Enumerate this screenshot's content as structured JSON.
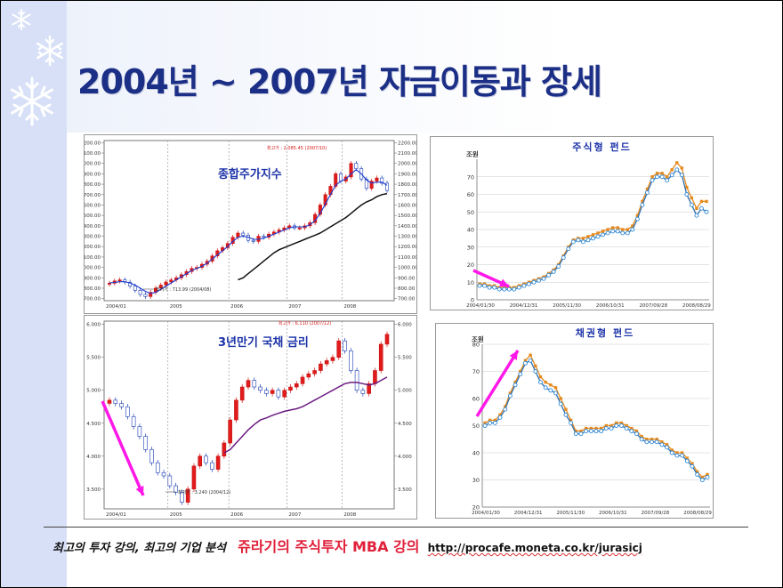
{
  "slide": {
    "title": "2004년 ~ 2007년 자금이동과 장세",
    "footer": {
      "tagline": "최고의 투자 강의, 최고의 기업 분석",
      "course": "쥬라기의 주식투자 MBA 강의",
      "url": "http://procafe.moneta.co.kr/jurasicj"
    }
  },
  "chart_data": [
    {
      "type": "candlestick",
      "title": "종합주가지수",
      "x_ticks": [
        "2004/01",
        "2005",
        "2006",
        "2007",
        "2008"
      ],
      "y_ticks": [
        "2200.00",
        "2100.00",
        "2000.00",
        "1900.00",
        "1800.00",
        "1700.00",
        "1600.00",
        "1500.00",
        "1400.00",
        "1300.00",
        "1200.00",
        "1100.00",
        "1000.00",
        "900.00",
        "800.00",
        "700.00"
      ],
      "ylim": [
        680,
        2220
      ],
      "annotations": {
        "high": "최고가 : 2,085.45 (2007/10)",
        "low": "최저가 : 713.99 (2004/08)"
      },
      "close": [
        848,
        870,
        880,
        858,
        820,
        780,
        740,
        720,
        760,
        800,
        830,
        860,
        880,
        900,
        930,
        960,
        990,
        1000,
        1030,
        1060,
        1110,
        1160,
        1190,
        1230,
        1290,
        1330,
        1310,
        1260,
        1250,
        1300,
        1290,
        1320,
        1340,
        1360,
        1380,
        1400,
        1380,
        1380,
        1400,
        1430,
        1510,
        1600,
        1700,
        1780,
        1900,
        1830,
        1870,
        2000,
        1950,
        1850,
        1760,
        1830,
        1860,
        1810,
        1740
      ],
      "series": [
        {
          "name": "ma_short",
          "values": [
            850,
            856,
            862,
            862,
            850,
            830,
            800,
            770,
            750,
            760,
            790,
            820,
            850,
            880,
            910,
            940,
            970,
            990,
            1010,
            1040,
            1080,
            1120,
            1160,
            1200,
            1250,
            1290,
            1300,
            1290,
            1270,
            1270,
            1280,
            1300,
            1320,
            1340,
            1360,
            1380,
            1390,
            1390,
            1390,
            1410,
            1450,
            1520,
            1610,
            1700,
            1790,
            1830,
            1850,
            1900,
            1940,
            1900,
            1840,
            1810,
            1820,
            1820,
            1790
          ]
        },
        {
          "name": "ma_long",
          "values": [
            null,
            null,
            null,
            null,
            null,
            null,
            null,
            null,
            null,
            null,
            null,
            null,
            null,
            null,
            null,
            null,
            null,
            null,
            880,
            900,
            940,
            980,
            1020,
            1060,
            1100,
            1140,
            1170,
            1190,
            1210,
            1230,
            1250,
            1270,
            1290,
            1310,
            1330,
            1360,
            1390,
            1420,
            1450,
            1480,
            1520,
            1560,
            1600,
            1630,
            1650,
            1680,
            1700,
            1710
          ]
        }
      ]
    },
    {
      "type": "line",
      "title": "주식형 펀드",
      "ylabel": "조원",
      "y_ticks": [
        0,
        10,
        20,
        30,
        40,
        50,
        60,
        70
      ],
      "ylim": [
        0,
        80
      ],
      "x_ticks": [
        "2004/01/30",
        "2004/12/31",
        "2005/11/30",
        "2006/10/31",
        "2007/09/28",
        "2008/08/29"
      ],
      "series": [
        {
          "name": "orange",
          "values": [
            9,
            9,
            8,
            8,
            7,
            7,
            7,
            7,
            8,
            9,
            10,
            11,
            12,
            13,
            15,
            17,
            20,
            25,
            30,
            34,
            35,
            35,
            36,
            37,
            38,
            39,
            40,
            41,
            41,
            40,
            40,
            42,
            48,
            56,
            63,
            70,
            72,
            72,
            70,
            74,
            78,
            75,
            64,
            58,
            52,
            56,
            56
          ]
        },
        {
          "name": "blue",
          "values": [
            8,
            8,
            7,
            7,
            6,
            6,
            6,
            6,
            7,
            8,
            9,
            10,
            11,
            12,
            14,
            16,
            19,
            24,
            29,
            33,
            34,
            33,
            34,
            35,
            36,
            37,
            38,
            39,
            39,
            38,
            38,
            40,
            46,
            54,
            61,
            68,
            70,
            70,
            68,
            71,
            74,
            71,
            60,
            54,
            48,
            52,
            50
          ]
        }
      ]
    },
    {
      "type": "candlestick",
      "title": "3년만기 국채 금리",
      "x_ticks": [
        "2004/01",
        "2005",
        "2006",
        "2007",
        "2008"
      ],
      "y_ticks": [
        "6.000",
        "5.500",
        "5.000",
        "4.500",
        "4.000",
        "3.500"
      ],
      "ylim": [
        3.2,
        6.05
      ],
      "annotations": {
        "high": "최고가 : 6.110 (2007/12)",
        "low": "최저가 : 3.240 (2004/12)"
      },
      "close": [
        4.85,
        4.8,
        4.75,
        4.6,
        4.45,
        4.3,
        4.1,
        3.9,
        3.75,
        3.7,
        3.55,
        3.45,
        3.3,
        3.5,
        3.85,
        4.0,
        3.9,
        3.8,
        4.0,
        4.2,
        4.55,
        4.85,
        5.05,
        5.15,
        5.05,
        5.0,
        4.95,
        5.0,
        4.9,
        5.0,
        5.05,
        5.1,
        5.2,
        5.25,
        5.3,
        5.4,
        5.45,
        5.5,
        5.75,
        5.6,
        5.3,
        5.0,
        4.95,
        5.1,
        5.3,
        5.7,
        5.85
      ],
      "series": [
        {
          "name": "ma",
          "values": [
            null,
            null,
            null,
            null,
            null,
            null,
            null,
            null,
            null,
            null,
            null,
            null,
            null,
            null,
            null,
            null,
            null,
            4.05,
            4.1,
            4.2,
            4.3,
            4.4,
            4.48,
            4.55,
            4.58,
            4.62,
            4.65,
            4.68,
            4.7,
            4.72,
            4.75,
            4.8,
            4.85,
            4.9,
            4.95,
            5.0,
            5.05,
            5.1,
            5.12,
            5.12,
            5.1,
            5.08,
            5.1,
            5.15,
            5.2
          ]
        }
      ]
    },
    {
      "type": "line",
      "title": "채권형 펀드",
      "ylabel": "조원",
      "y_ticks": [
        20,
        30,
        40,
        50,
        60,
        70,
        80
      ],
      "ylim": [
        20,
        80
      ],
      "x_ticks": [
        "2004/01/30",
        "2004/12/31",
        "2005/11/30",
        "2006/10/31",
        "2007/09/28",
        "2008/08/29"
      ],
      "series": [
        {
          "name": "orange",
          "values": [
            51,
            52,
            52,
            54,
            57,
            62,
            66,
            70,
            74,
            76,
            72,
            68,
            66,
            65,
            64,
            60,
            56,
            52,
            48,
            48,
            49,
            49,
            49,
            49,
            50,
            50,
            51,
            51,
            50,
            49,
            48,
            46,
            45,
            45,
            45,
            44,
            43,
            41,
            40,
            40,
            38,
            36,
            33,
            31,
            32
          ]
        },
        {
          "name": "blue",
          "values": [
            50,
            51,
            51,
            53,
            56,
            61,
            65,
            69,
            73,
            74,
            70,
            66,
            64,
            63,
            62,
            58,
            54,
            51,
            47,
            47,
            48,
            48,
            48,
            48,
            49,
            49,
            50,
            50,
            49,
            48,
            47,
            45,
            44,
            44,
            44,
            43,
            42,
            40,
            39,
            39,
            37,
            35,
            32,
            30,
            31
          ]
        }
      ]
    }
  ]
}
